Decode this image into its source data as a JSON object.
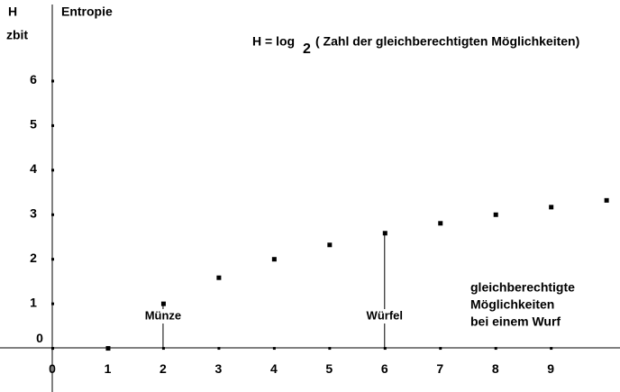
{
  "chart_data": {
    "type": "scatter",
    "title": "Entropie",
    "y_label": "H",
    "y_unit": "zbit",
    "formula": {
      "text": "H = log",
      "subscript": "2",
      "argument": "( Zahl der gleichberechtigten Möglichkeiten)"
    },
    "x_label": [
      "gleichberechtigte",
      "Möglichkeiten",
      "bei einem Wurf"
    ],
    "x": [
      1,
      2,
      3,
      4,
      5,
      6,
      7,
      8,
      9,
      10
    ],
    "values": [
      0,
      1,
      1.585,
      2,
      2.322,
      2.585,
      2.807,
      3,
      3.17,
      3.322
    ],
    "color": "#000000",
    "xlim": [
      -0.944,
      10.25
    ],
    "ylim": [
      -0.99,
      7.81
    ],
    "xticks": [
      0,
      1,
      2,
      3,
      4,
      5,
      6,
      7,
      8,
      9
    ],
    "yticks": [
      0,
      1,
      2,
      3,
      4,
      5,
      6
    ],
    "annotations": [
      {
        "text": "Münze",
        "x": 2
      },
      {
        "text": "Würfel",
        "x": 6
      }
    ]
  }
}
